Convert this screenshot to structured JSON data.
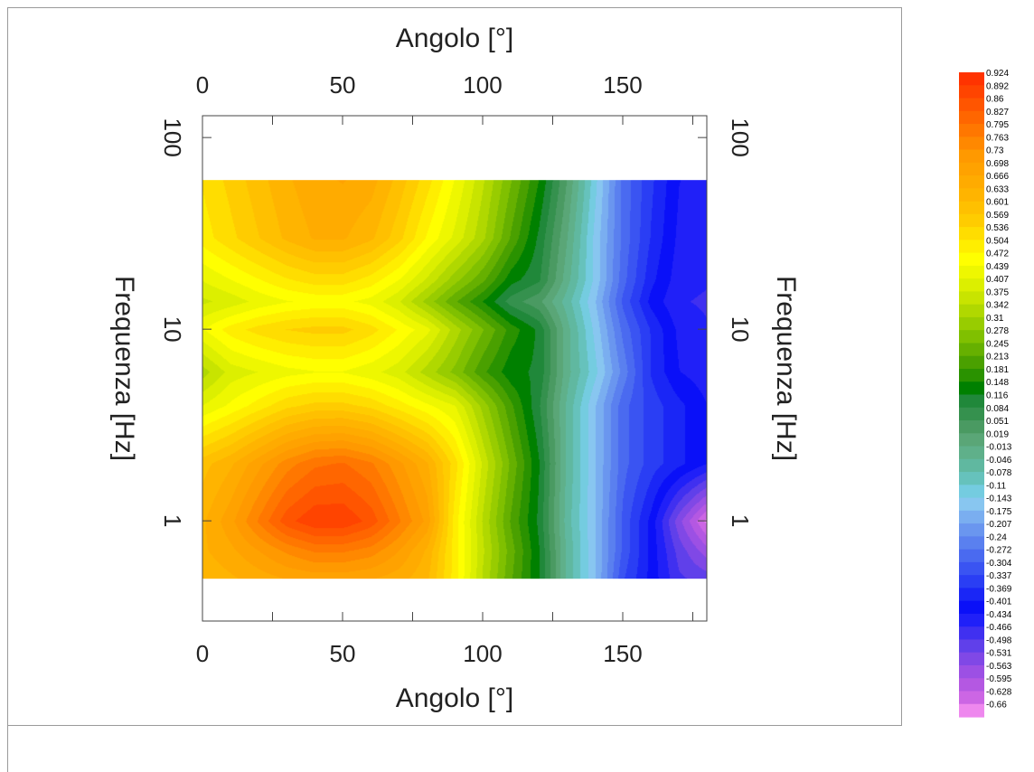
{
  "chart_data": {
    "type": "heatmap",
    "subtype": "filled-contour",
    "x_axis": {
      "label": "Angolo [°]",
      "range": [
        0,
        180
      ],
      "ticks": [
        0,
        50,
        100,
        150
      ],
      "minor_ticks": [
        25,
        75,
        125,
        175
      ],
      "shown_top_and_bottom": true
    },
    "y_axis": {
      "label": "Frequenza [Hz]",
      "scale": "log",
      "range": [
        0.3,
        130
      ],
      "ticks": [
        1,
        10,
        100
      ],
      "tick_labels": [
        "1",
        "10",
        "100"
      ],
      "shown_left_and_right": true
    },
    "data_extent": {
      "x": [
        0,
        180
      ],
      "y": [
        0.5,
        60
      ]
    },
    "colorbar": {
      "levels": [
        "0.924",
        "0.892",
        "0.86",
        "0.827",
        "0.795",
        "0.763",
        "0.73",
        "0.698",
        "0.666",
        "0.633",
        "0.601",
        "0.569",
        "0.536",
        "0.504",
        "0.472",
        "0.439",
        "0.407",
        "0.375",
        "0.342",
        "0.31",
        "0.278",
        "0.245",
        "0.213",
        "0.181",
        "0.148",
        "0.116",
        "0.084",
        "0.051",
        "0.019",
        "-0.013",
        "-0.046",
        "-0.078",
        "-0.11",
        "-0.143",
        "-0.175",
        "-0.207",
        "-0.24",
        "-0.272",
        "-0.304",
        "-0.337",
        "-0.369",
        "-0.401",
        "-0.434",
        "-0.466",
        "-0.498",
        "-0.531",
        "-0.563",
        "-0.595",
        "-0.628",
        "-0.66"
      ],
      "colors": [
        "#ff3300",
        "#ff4400",
        "#ff5500",
        "#ff6600",
        "#ff7700",
        "#ff8800",
        "#ff9900",
        "#ffa200",
        "#ffab00",
        "#ffb400",
        "#ffc000",
        "#ffcc00",
        "#ffdd00",
        "#ffee00",
        "#ffff00",
        "#eef700",
        "#dcef00",
        "#c8e400",
        "#b0d800",
        "#98cc00",
        "#80c000",
        "#66b000",
        "#4aa000",
        "#2a9200",
        "#008000",
        "#20883a",
        "#35914e",
        "#4a9a62",
        "#5aa677",
        "#5fb08a",
        "#60b8a0",
        "#66c2bc",
        "#74cce0",
        "#88c6f0",
        "#7aaef0",
        "#6a96ef",
        "#5a80ef",
        "#4a6af0",
        "#3a54f2",
        "#2a3ef4",
        "#1a26f6",
        "#0a10f8",
        "#2020f8",
        "#4030f0",
        "#6040ea",
        "#8048e6",
        "#9c50e4",
        "#b458e2",
        "#cc66e4",
        "#ee88ee"
      ],
      "min": -0.66,
      "max": 0.924
    },
    "field_nodes": {
      "angles": [
        0,
        10,
        20,
        30,
        40,
        50,
        60,
        70,
        80,
        90,
        100,
        110,
        120,
        130,
        140,
        150,
        160,
        170,
        180
      ],
      "rows": [
        {
          "freq": 60,
          "values": [
            0.54,
            0.58,
            0.62,
            0.66,
            0.69,
            0.7,
            0.68,
            0.62,
            0.55,
            0.47,
            0.38,
            0.28,
            0.18,
            0.05,
            -0.1,
            -0.25,
            -0.33,
            -0.4,
            -0.42
          ]
        },
        {
          "freq": 30,
          "values": [
            0.52,
            0.56,
            0.6,
            0.64,
            0.67,
            0.67,
            0.64,
            0.58,
            0.5,
            0.43,
            0.35,
            0.24,
            0.14,
            0.02,
            -0.12,
            -0.25,
            -0.34,
            -0.41,
            -0.42
          ]
        },
        {
          "freq": 18,
          "values": [
            0.44,
            0.47,
            0.5,
            0.53,
            0.55,
            0.55,
            0.52,
            0.47,
            0.4,
            0.32,
            0.25,
            0.16,
            0.12,
            0.0,
            -0.12,
            -0.26,
            -0.36,
            -0.42,
            -0.43
          ]
        },
        {
          "freq": 14,
          "values": [
            0.4,
            0.42,
            0.45,
            0.47,
            0.48,
            0.48,
            0.46,
            0.41,
            0.33,
            0.25,
            0.18,
            0.1,
            0.06,
            -0.03,
            -0.14,
            -0.28,
            -0.38,
            -0.43,
            -0.44
          ]
        },
        {
          "freq": 10,
          "values": [
            0.47,
            0.52,
            0.55,
            0.57,
            0.58,
            0.58,
            0.55,
            0.5,
            0.45,
            0.36,
            0.28,
            0.2,
            0.14,
            0.0,
            -0.12,
            -0.25,
            -0.34,
            -0.41,
            -0.43
          ]
        },
        {
          "freq": 6,
          "values": [
            0.36,
            0.42,
            0.44,
            0.46,
            0.47,
            0.47,
            0.45,
            0.42,
            0.36,
            0.3,
            0.22,
            0.16,
            0.14,
            0.0,
            -0.1,
            -0.22,
            -0.34,
            -0.4,
            -0.42
          ]
        },
        {
          "freq": 4,
          "values": [
            0.44,
            0.48,
            0.52,
            0.56,
            0.58,
            0.58,
            0.56,
            0.52,
            0.48,
            0.44,
            0.33,
            0.22,
            0.12,
            -0.02,
            -0.14,
            -0.26,
            -0.32,
            -0.36,
            -0.4
          ]
        },
        {
          "freq": 2,
          "values": [
            0.62,
            0.66,
            0.72,
            0.78,
            0.82,
            0.83,
            0.8,
            0.74,
            0.67,
            0.55,
            0.4,
            0.27,
            0.15,
            -0.02,
            -0.14,
            -0.26,
            -0.32,
            -0.36,
            -0.4
          ]
        },
        {
          "freq": 1,
          "values": [
            0.66,
            0.72,
            0.8,
            0.88,
            0.92,
            0.92,
            0.88,
            0.8,
            0.72,
            0.52,
            0.37,
            0.24,
            0.14,
            -0.03,
            -0.14,
            -0.28,
            -0.38,
            -0.52,
            -0.64
          ]
        },
        {
          "freq": 0.7,
          "values": [
            0.66,
            0.69,
            0.73,
            0.77,
            0.8,
            0.8,
            0.78,
            0.73,
            0.66,
            0.52,
            0.38,
            0.26,
            0.15,
            -0.02,
            -0.14,
            -0.28,
            -0.38,
            -0.48,
            -0.55
          ]
        },
        {
          "freq": 0.5,
          "values": [
            0.64,
            0.66,
            0.68,
            0.7,
            0.71,
            0.71,
            0.7,
            0.68,
            0.64,
            0.52,
            0.37,
            0.25,
            0.15,
            -0.02,
            -0.14,
            -0.3,
            -0.38,
            -0.46,
            -0.48
          ]
        }
      ]
    }
  }
}
